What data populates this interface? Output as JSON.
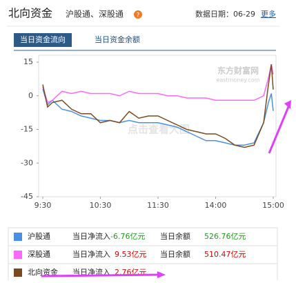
{
  "header": {
    "title": "北向资金",
    "subtitle": "沪股通、深股通",
    "badge": "?",
    "date_label": "数据日期：06-29",
    "more": "更多"
  },
  "tabs": [
    "当日资金流向",
    "当日资金余额"
  ],
  "watermark": {
    "logo": "东方财富网",
    "logo_sub": "eastmoney.com",
    "center": "点击查看大图"
  },
  "chart_data": {
    "type": "line",
    "x": [
      "9:30",
      "9:35",
      "9:40",
      "9:50",
      "10:00",
      "10:10",
      "10:20",
      "10:30",
      "10:40",
      "10:50",
      "11:00",
      "11:10",
      "11:20",
      "11:30",
      "13:10",
      "13:20",
      "13:30",
      "13:40",
      "13:50",
      "14:00",
      "14:10",
      "14:20",
      "14:30",
      "14:40",
      "14:50",
      "14:55",
      "14:58",
      "15:00"
    ],
    "series": [
      {
        "name": "沪股通",
        "color": "#4a90e2",
        "values": [
          3,
          -4,
          -2,
          -6,
          -7,
          -9,
          -10,
          -11,
          -11,
          -12,
          -11,
          -12,
          -12,
          -12,
          -13,
          -14,
          -16,
          -18,
          -20,
          -20,
          -21,
          -22,
          -22,
          -21,
          -12,
          -3,
          1,
          -6.76
        ]
      },
      {
        "name": "深股通",
        "color": "#ff66ff",
        "values": [
          4,
          -3,
          -2,
          2,
          1,
          2,
          1,
          1,
          1,
          0,
          2,
          1,
          1,
          1,
          0,
          0,
          -1,
          -1,
          -1,
          -2,
          -2,
          -2,
          -2,
          -2,
          0,
          8,
          14,
          9.53
        ]
      },
      {
        "name": "北向资金",
        "color": "#7a4a1e",
        "values": [
          5,
          -5,
          -3,
          -2,
          -6,
          -8,
          -8,
          -12,
          -11,
          -12,
          -7,
          -10,
          -9,
          -9,
          -11,
          -13,
          -15,
          -16,
          -17,
          -17,
          -19,
          -22,
          -23,
          -22,
          -12,
          5,
          14,
          2.76
        ]
      }
    ],
    "ylim": [
      -45,
      15
    ],
    "yticks": [
      15,
      0,
      -15,
      -30,
      -45
    ],
    "xticks": [
      "9:30",
      "10:30",
      "11:30",
      "14:00",
      "15:00"
    ]
  },
  "table": {
    "rows": [
      [
        "沪股通",
        "当日净流入",
        "-6.76亿元",
        "当日余额",
        "526.76亿元"
      ],
      [
        "深股通",
        "当日净流入",
        "9.53亿元",
        "当日余额",
        "510.47亿元"
      ],
      [
        "北向资金",
        "当日净流入",
        "2.76亿元"
      ]
    ]
  }
}
